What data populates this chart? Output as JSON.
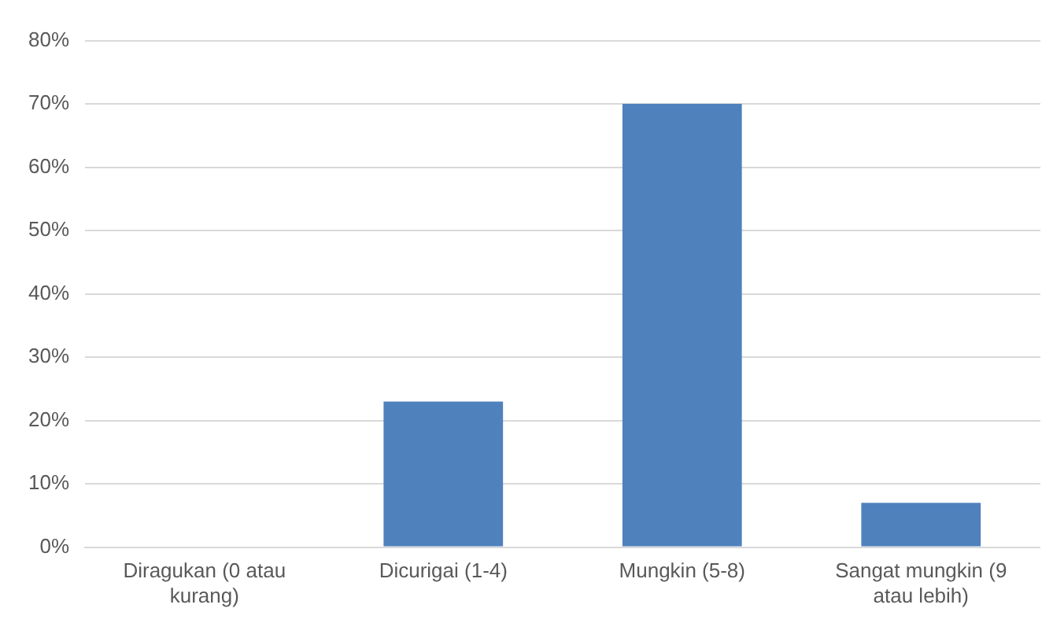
{
  "chart_data": {
    "type": "bar",
    "categories": [
      "Diragukan (0 atau kurang)",
      "Dicurigai (1-4)",
      "Mungkin (5-8)",
      "Sangat mungkin (9 atau lebih)"
    ],
    "values": [
      0,
      23,
      70,
      7
    ],
    "color": "#4f81bd",
    "ylim": [
      0,
      80
    ],
    "yticks": [
      {
        "value": 0,
        "label": "0%"
      },
      {
        "value": 10,
        "label": "10%"
      },
      {
        "value": 20,
        "label": "20%"
      },
      {
        "value": 30,
        "label": "30%"
      },
      {
        "value": 40,
        "label": "40%"
      },
      {
        "value": 50,
        "label": "50%"
      },
      {
        "value": 60,
        "label": "60%"
      },
      {
        "value": 70,
        "label": "70%"
      },
      {
        "value": 80,
        "label": "80%"
      }
    ],
    "grid": "y",
    "legend": false
  }
}
